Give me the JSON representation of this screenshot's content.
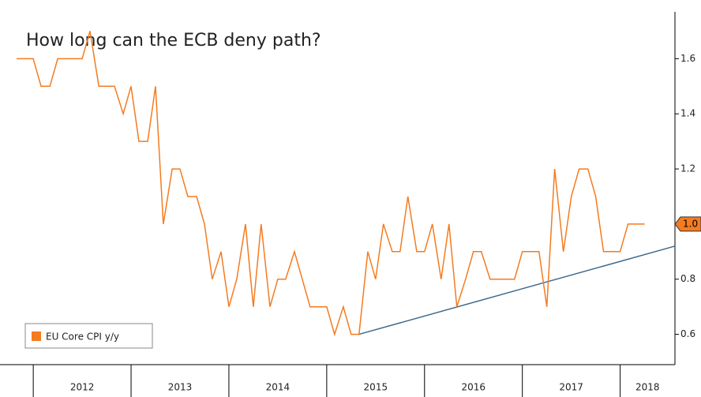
{
  "chart_data": {
    "type": "line",
    "title": "How long can the ECB deny path?",
    "x": [
      2011.83,
      2011.92,
      2012.0,
      2012.08,
      2012.17,
      2012.25,
      2012.33,
      2012.42,
      2012.5,
      2012.58,
      2012.67,
      2012.75,
      2012.83,
      2012.92,
      2013.0,
      2013.08,
      2013.17,
      2013.25,
      2013.33,
      2013.42,
      2013.5,
      2013.58,
      2013.67,
      2013.75,
      2013.83,
      2013.92,
      2014.0,
      2014.08,
      2014.17,
      2014.25,
      2014.33,
      2014.42,
      2014.5,
      2014.58,
      2014.67,
      2014.75,
      2014.83,
      2014.92,
      2015.0,
      2015.08,
      2015.17,
      2015.25,
      2015.33,
      2015.42,
      2015.5,
      2015.58,
      2015.67,
      2015.75,
      2015.83,
      2015.92,
      2016.0,
      2016.08,
      2016.17,
      2016.25,
      2016.33,
      2016.42,
      2016.5,
      2016.58,
      2016.67,
      2016.75,
      2016.83,
      2016.92,
      2017.0,
      2017.08,
      2017.17,
      2017.25,
      2017.33,
      2017.42,
      2017.5,
      2017.58,
      2017.67,
      2017.75,
      2017.83,
      2017.92,
      2018.0,
      2018.08,
      2018.17,
      2018.25
    ],
    "series": [
      {
        "name": "EU Core CPI y/y",
        "color": "#f47b20",
        "values": [
          1.6,
          1.6,
          1.6,
          1.5,
          1.5,
          1.6,
          1.6,
          1.6,
          1.6,
          1.7,
          1.5,
          1.5,
          1.5,
          1.4,
          1.5,
          1.3,
          1.3,
          1.5,
          1.0,
          1.2,
          1.2,
          1.1,
          1.1,
          1.0,
          0.8,
          0.9,
          0.7,
          0.8,
          1.0,
          0.7,
          1.0,
          0.7,
          0.8,
          0.8,
          0.9,
          0.8,
          0.7,
          0.7,
          0.7,
          0.6,
          0.7,
          0.6,
          0.6,
          0.9,
          0.8,
          1.0,
          0.9,
          0.9,
          1.1,
          0.9,
          0.9,
          1.0,
          0.8,
          1.0,
          0.7,
          0.8,
          0.9,
          0.9,
          0.8,
          0.8,
          0.8,
          0.8,
          0.9,
          0.9,
          0.9,
          0.7,
          1.2,
          0.9,
          1.1,
          1.2,
          1.2,
          1.1,
          0.9,
          0.9,
          0.9,
          1.0,
          1.0,
          1.0
        ]
      }
    ],
    "last_value_label": "1.0",
    "trendline": {
      "color": "#3d6a8e",
      "x": [
        2015.33,
        2018.56
      ],
      "y": [
        0.6,
        0.92
      ]
    },
    "xlim": [
      2011.66,
      2018.56
    ],
    "xticks": [
      2012,
      2013,
      2014,
      2015,
      2016,
      2017,
      2018
    ],
    "ylim": [
      0.49,
      1.77
    ],
    "yticks": [
      0.6,
      0.8,
      {
        "value": 1,
        "label": "1.0"
      },
      1.2,
      1.4,
      1.6
    ],
    "legend": "bottom-left"
  }
}
